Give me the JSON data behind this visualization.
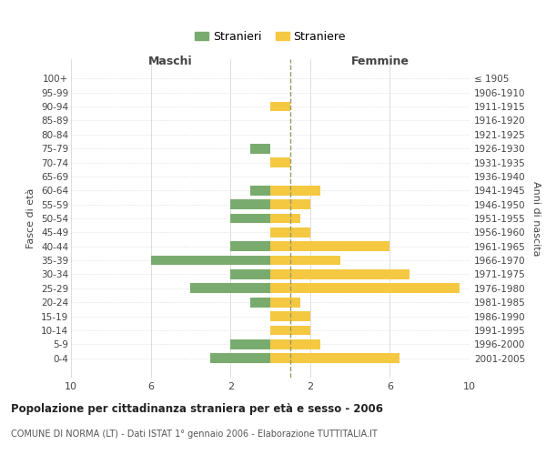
{
  "age_groups": [
    "100+",
    "95-99",
    "90-94",
    "85-89",
    "80-84",
    "75-79",
    "70-74",
    "65-69",
    "60-64",
    "55-59",
    "50-54",
    "45-49",
    "40-44",
    "35-39",
    "30-34",
    "25-29",
    "20-24",
    "15-19",
    "10-14",
    "5-9",
    "0-4"
  ],
  "birth_years": [
    "≤ 1905",
    "1906-1910",
    "1911-1915",
    "1916-1920",
    "1921-1925",
    "1926-1930",
    "1931-1935",
    "1936-1940",
    "1941-1945",
    "1946-1950",
    "1951-1955",
    "1956-1960",
    "1961-1965",
    "1966-1970",
    "1971-1975",
    "1976-1980",
    "1981-1985",
    "1986-1990",
    "1991-1995",
    "1996-2000",
    "2001-2005"
  ],
  "maschi": [
    0,
    0,
    0,
    0,
    0,
    1,
    0,
    0,
    1,
    2,
    2,
    0,
    2,
    6,
    2,
    4,
    1,
    0,
    0,
    2,
    3
  ],
  "femmine": [
    0,
    0,
    1,
    0,
    0,
    0,
    1,
    0,
    2.5,
    2,
    1.5,
    2,
    6,
    3.5,
    7,
    9.5,
    1.5,
    2,
    2,
    2.5,
    6.5
  ],
  "color_maschi": "#7aab6e",
  "color_femmine": "#f5c842",
  "title": "Popolazione per cittadinanza straniera per età e sesso - 2006",
  "subtitle": "COMUNE DI NORMA (LT) - Dati ISTAT 1° gennaio 2006 - Elaborazione TUTTITALIA.IT",
  "xlabel_left": "Maschi",
  "xlabel_right": "Femmine",
  "ylabel_left": "Fasce di età",
  "ylabel_right": "Anni di nascita",
  "legend_maschi": "Stranieri",
  "legend_femmine": "Straniere",
  "xlim": 10,
  "bg_color": "#ffffff",
  "grid_color": "#d0d0d0",
  "dashed_line_color": "#999966"
}
